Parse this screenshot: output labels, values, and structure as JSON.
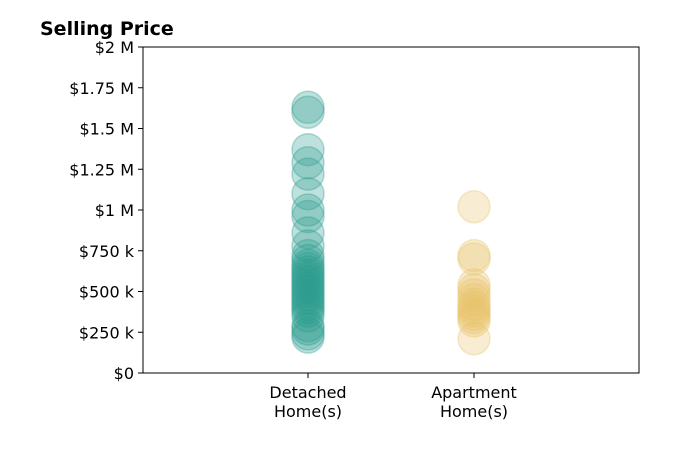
{
  "chart_data": {
    "type": "scatter",
    "title": "Selling Price",
    "xlabel": "",
    "ylabel": "",
    "ylim": [
      0,
      2000000
    ],
    "y_ticks": [
      {
        "value": 0,
        "label": "$0"
      },
      {
        "value": 250000,
        "label": "$250 k"
      },
      {
        "value": 500000,
        "label": "$500 k"
      },
      {
        "value": 750000,
        "label": "$750 k"
      },
      {
        "value": 1000000,
        "label": "$1 M"
      },
      {
        "value": 1250000,
        "label": "$1.25 M"
      },
      {
        "value": 1500000,
        "label": "$1.5 M"
      },
      {
        "value": 1750000,
        "label": "$1.75 M"
      },
      {
        "value": 2000000,
        "label": "$2 M"
      }
    ],
    "categories": [
      {
        "lines": [
          "Detached",
          "Home(s)"
        ]
      },
      {
        "lines": [
          "Apartment",
          "Home(s)"
        ]
      }
    ],
    "grid": false,
    "series": [
      {
        "category_index": 0,
        "color": "#2a9d8f",
        "values": [
          1630000,
          1600000,
          1370000,
          1290000,
          1220000,
          1100000,
          1000000,
          960000,
          860000,
          780000,
          720000,
          690000,
          660000,
          640000,
          620000,
          600000,
          580000,
          560000,
          540000,
          520000,
          500000,
          480000,
          460000,
          440000,
          420000,
          400000,
          380000,
          350000,
          290000,
          270000,
          240000,
          220000
        ]
      },
      {
        "category_index": 1,
        "color": "#e9c46a",
        "values": [
          1020000,
          720000,
          700000,
          540000,
          510000,
          480000,
          450000,
          420000,
          400000,
          380000,
          360000,
          340000,
          320000,
          210000
        ]
      }
    ]
  }
}
